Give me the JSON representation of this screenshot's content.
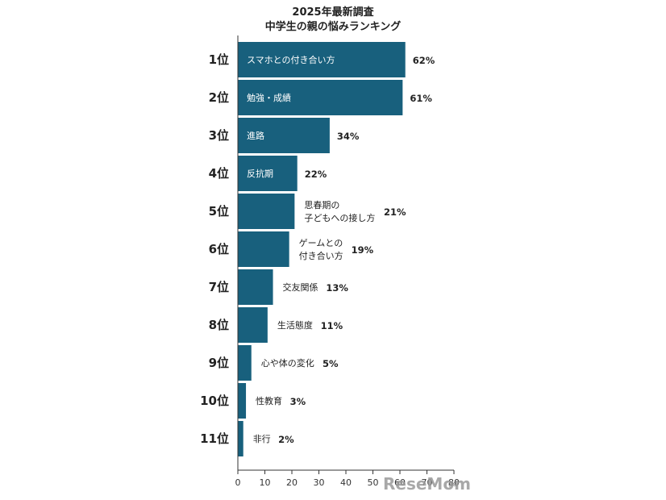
{
  "title_lines": [
    "2025年最新調査",
    "中学生の親の悩みランキング"
  ],
  "colors": {
    "bar": "#18607d",
    "axis": "#333333",
    "text": "#222222",
    "watermark": "#9a9a9a"
  },
  "watermark": "ReseMom",
  "chart_data": {
    "type": "bar",
    "orientation": "horizontal",
    "title": "2025年最新調査 中学生の親の悩みランキング",
    "unit": "(%)",
    "xlim": [
      0,
      80
    ],
    "xticks": [
      0,
      10,
      20,
      30,
      40,
      50,
      60,
      70,
      80
    ],
    "xtick_labels": [
      "0",
      "10",
      "20",
      "30",
      "40",
      "50",
      "60",
      "70",
      "80"
    ],
    "grid": false,
    "bars": [
      {
        "rank": "1位",
        "label": [
          "スマホとの付き合い方"
        ],
        "value": 62,
        "value_label": "62%",
        "label_inside": true
      },
      {
        "rank": "2位",
        "label": [
          "勉強・成績"
        ],
        "value": 61,
        "value_label": "61%",
        "label_inside": true
      },
      {
        "rank": "3位",
        "label": [
          "進路"
        ],
        "value": 34,
        "value_label": "34%",
        "label_inside": true
      },
      {
        "rank": "4位",
        "label": [
          "反抗期"
        ],
        "value": 22,
        "value_label": "22%",
        "label_inside": true
      },
      {
        "rank": "5位",
        "label": [
          "思春期の",
          "子どもへの接し方"
        ],
        "value": 21,
        "value_label": "21%",
        "label_inside": false
      },
      {
        "rank": "6位",
        "label": [
          "ゲームとの",
          "付き合い方"
        ],
        "value": 19,
        "value_label": "19%",
        "label_inside": false
      },
      {
        "rank": "7位",
        "label": [
          "交友関係"
        ],
        "value": 13,
        "value_label": "13%",
        "label_inside": false
      },
      {
        "rank": "8位",
        "label": [
          "生活態度"
        ],
        "value": 11,
        "value_label": "11%",
        "label_inside": false
      },
      {
        "rank": "9位",
        "label": [
          "心や体の変化"
        ],
        "value": 5,
        "value_label": "5%",
        "label_inside": false
      },
      {
        "rank": "10位",
        "label": [
          "性教育"
        ],
        "value": 3,
        "value_label": "3%",
        "label_inside": false
      },
      {
        "rank": "11位",
        "label": [
          "非行"
        ],
        "value": 2,
        "value_label": "2%",
        "label_inside": false
      }
    ]
  }
}
